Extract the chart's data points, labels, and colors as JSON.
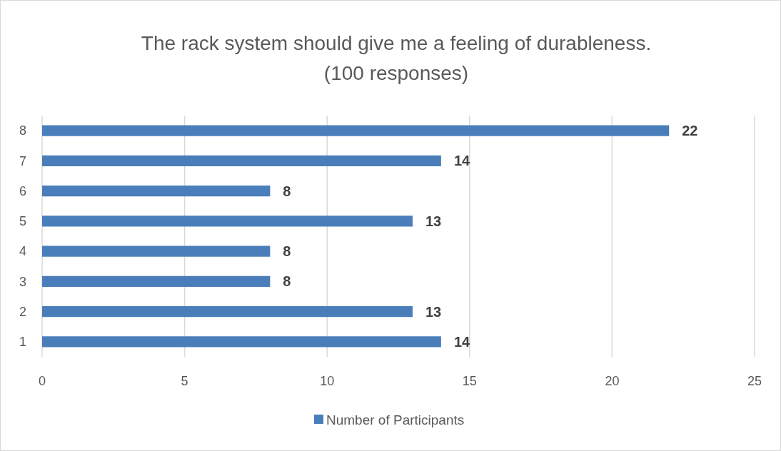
{
  "chart_data": {
    "type": "bar",
    "orientation": "horizontal",
    "title": "The rack system should give me a feeling of durableness.",
    "subtitle": "(100 responses)",
    "categories": [
      "8",
      "7",
      "6",
      "5",
      "4",
      "3",
      "2",
      "1"
    ],
    "series": [
      {
        "name": "Number of Participants",
        "color": "#4a7ebb",
        "values": [
          22,
          14,
          8,
          13,
          8,
          8,
          13,
          14
        ]
      }
    ],
    "xlim": [
      0,
      25
    ],
    "xticks": [
      0,
      5,
      10,
      15,
      20,
      25
    ],
    "grid": "x",
    "legend": "bottom",
    "data_labels": true
  }
}
